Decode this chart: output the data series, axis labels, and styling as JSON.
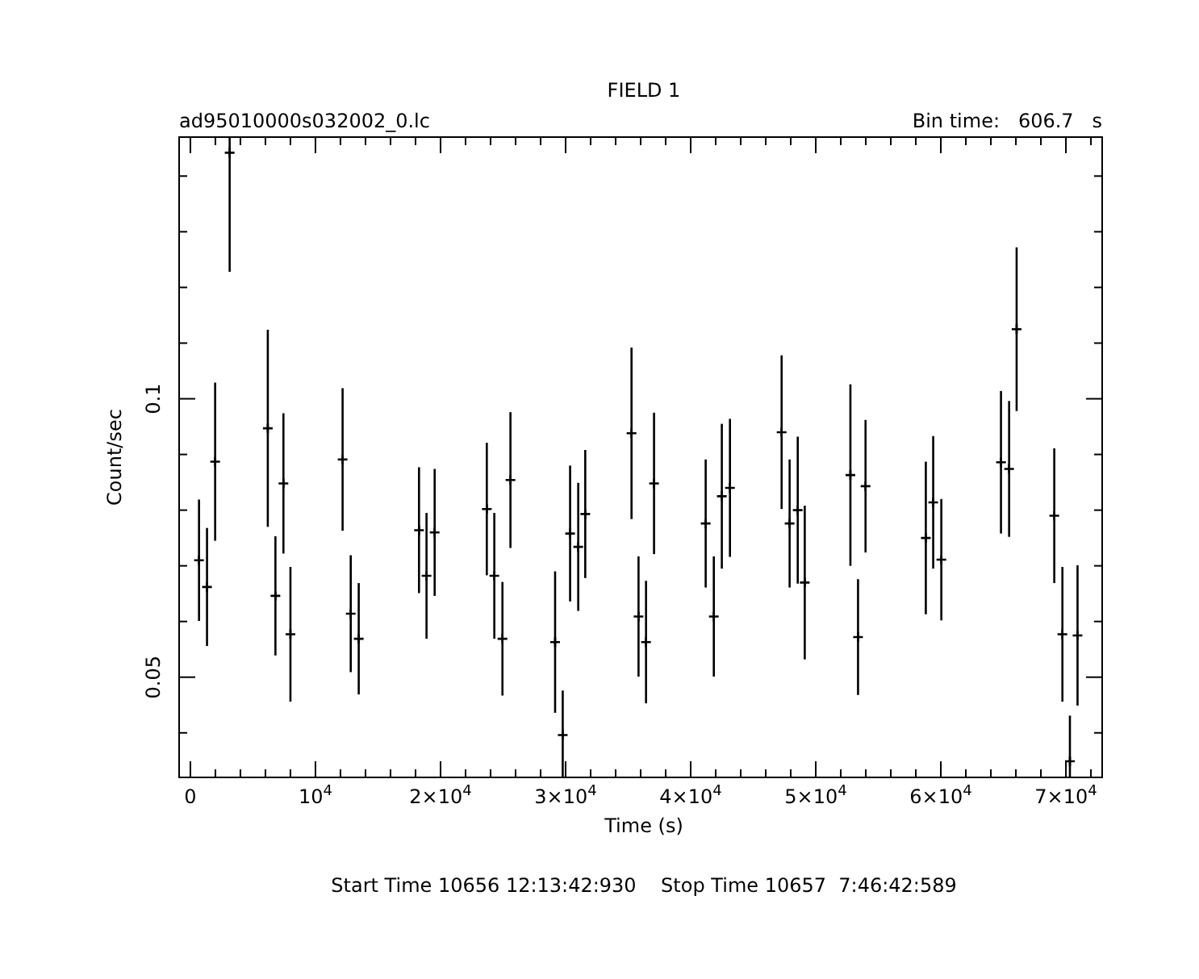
{
  "chart_data": {
    "type": "scatter",
    "title": "FIELD 1",
    "xlabel": "Time (s)",
    "ylabel": "Count/sec",
    "annotations": [
      "ad95010000s032002_0.lc",
      "Bin time:   606.7   s",
      "Start Time 10656 12:13:42:930    Stop Time 10657  7:46:42:589"
    ],
    "xlim": [
      -900,
      72900
    ],
    "ylim": [
      0.032,
      0.147
    ],
    "xticks": [
      {
        "value": 0,
        "label": "0"
      },
      {
        "value": 2000,
        "label": null
      },
      {
        "value": 4000,
        "label": null
      },
      {
        "value": 6000,
        "label": null
      },
      {
        "value": 8000,
        "label": null
      },
      {
        "value": 10000,
        "label": "10$^{4}$"
      },
      {
        "value": 12000,
        "label": null
      },
      {
        "value": 14000,
        "label": null
      },
      {
        "value": 16000,
        "label": null
      },
      {
        "value": 18000,
        "label": null
      },
      {
        "value": 20000,
        "label": "2×10$^{4}$"
      },
      {
        "value": 22000,
        "label": null
      },
      {
        "value": 24000,
        "label": null
      },
      {
        "value": 26000,
        "label": null
      },
      {
        "value": 28000,
        "label": null
      },
      {
        "value": 30000,
        "label": "3×10$^{4}$"
      },
      {
        "value": 32000,
        "label": null
      },
      {
        "value": 34000,
        "label": null
      },
      {
        "value": 36000,
        "label": null
      },
      {
        "value": 38000,
        "label": null
      },
      {
        "value": 40000,
        "label": "4×10$^{4}$"
      },
      {
        "value": 42000,
        "label": null
      },
      {
        "value": 44000,
        "label": null
      },
      {
        "value": 46000,
        "label": null
      },
      {
        "value": 48000,
        "label": null
      },
      {
        "value": 50000,
        "label": "5×10$^{4}$"
      },
      {
        "value": 52000,
        "label": null
      },
      {
        "value": 54000,
        "label": null
      },
      {
        "value": 56000,
        "label": null
      },
      {
        "value": 58000,
        "label": null
      },
      {
        "value": 60000,
        "label": "6×10$^{4}$"
      },
      {
        "value": 62000,
        "label": null
      },
      {
        "value": 64000,
        "label": null
      },
      {
        "value": 66000,
        "label": null
      },
      {
        "value": 68000,
        "label": null
      },
      {
        "value": 70000,
        "label": "7×10$^{4}$"
      },
      {
        "value": 72000,
        "label": null
      }
    ],
    "yticks": [
      {
        "value": 0.04,
        "label": null
      },
      0.05,
      {
        "value": 0.06,
        "label": null
      },
      {
        "value": 0.07,
        "label": null
      },
      {
        "value": 0.08,
        "label": null
      },
      {
        "value": 0.09,
        "label": null
      },
      0.1,
      {
        "value": 0.11,
        "label": null
      },
      {
        "value": 0.12,
        "label": null
      },
      {
        "value": 0.13,
        "label": null
      },
      {
        "value": 0.14,
        "label": null
      }
    ],
    "grid": false,
    "marker": "cross",
    "series": [
      {
        "color": "#000000",
        "x": [
          690,
          1330,
          1980,
          3140,
          6190,
          6800,
          7440,
          8000,
          12170,
          12820,
          13460,
          18280,
          18880,
          19530,
          23700,
          24300,
          24950,
          25590,
          29160,
          29770,
          30360,
          31010,
          31570,
          35270,
          35830,
          36430,
          37070,
          41200,
          41850,
          42490,
          43140,
          47270,
          47910,
          48560,
          49120,
          52770,
          53380,
          53980,
          58800,
          59390,
          60040,
          64810,
          65460,
          66060,
          69070,
          69720,
          70320,
          70930
        ],
        "values": [
          0.071,
          0.0662,
          0.0887,
          0.1442,
          0.0947,
          0.0646,
          0.0848,
          0.0577,
          0.0891,
          0.0614,
          0.0569,
          0.0764,
          0.0682,
          0.076,
          0.0802,
          0.0682,
          0.0569,
          0.0854,
          0.0563,
          0.0396,
          0.0758,
          0.0734,
          0.0793,
          0.0938,
          0.0609,
          0.0563,
          0.0848,
          0.0776,
          0.0609,
          0.0825,
          0.084,
          0.094,
          0.0776,
          0.08,
          0.067,
          0.0863,
          0.0572,
          0.0843,
          0.075,
          0.0814,
          0.0711,
          0.0886,
          0.0874,
          0.1125,
          0.079,
          0.0577,
          0.0349,
          0.0575
        ],
        "errors": [
          0.0109,
          0.0106,
          0.0142,
          [
            0.1228,
            0.147
          ],
          0.0177,
          0.0107,
          0.0126,
          0.0121,
          0.0128,
          0.0105,
          0.01,
          0.0113,
          0.0113,
          0.0114,
          0.0119,
          0.0113,
          0.0102,
          0.0122,
          0.0127,
          [
            0.032,
            0.0476
          ],
          0.0122,
          0.0115,
          0.0115,
          0.0154,
          0.0108,
          0.011,
          0.0127,
          0.0115,
          0.0108,
          0.013,
          0.0124,
          0.0138,
          0.0115,
          0.0132,
          0.0138,
          0.0163,
          0.0104,
          0.0119,
          0.0137,
          0.0119,
          0.0109,
          0.0128,
          0.0122,
          0.0147,
          0.0121,
          0.0121,
          [
            0.032,
            0.0431
          ],
          0.0126
        ]
      }
    ]
  }
}
